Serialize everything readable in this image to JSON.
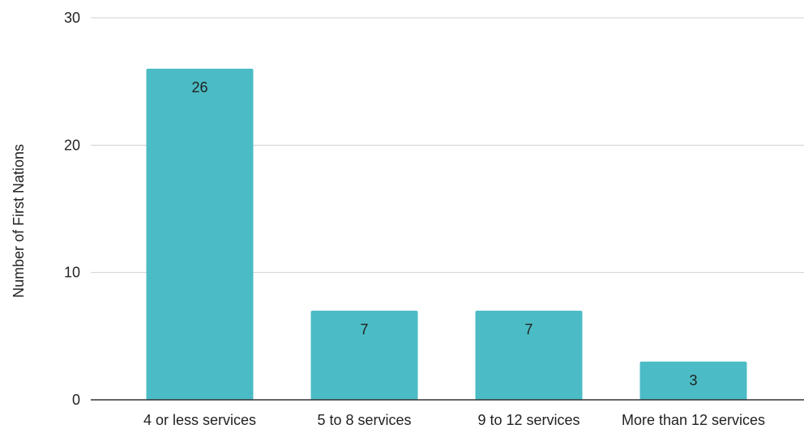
{
  "colors": {
    "bar": "#4bbcc5",
    "grid": "#d0d0d0",
    "axis": "#333333",
    "text": "#222222"
  },
  "chart_data": {
    "type": "bar",
    "title": "",
    "xlabel": "",
    "ylabel": "Number of First Nations",
    "ylim": [
      0,
      30
    ],
    "yticks": [
      0,
      10,
      20,
      30
    ],
    "grid": true,
    "legend": "none",
    "categories": [
      "4 or less services",
      "5 to 8 services",
      "9 to 12 services",
      "More than 12 services"
    ],
    "values": [
      26,
      7,
      7,
      3
    ],
    "data_labels": [
      "26",
      "7",
      "7",
      "3"
    ]
  }
}
